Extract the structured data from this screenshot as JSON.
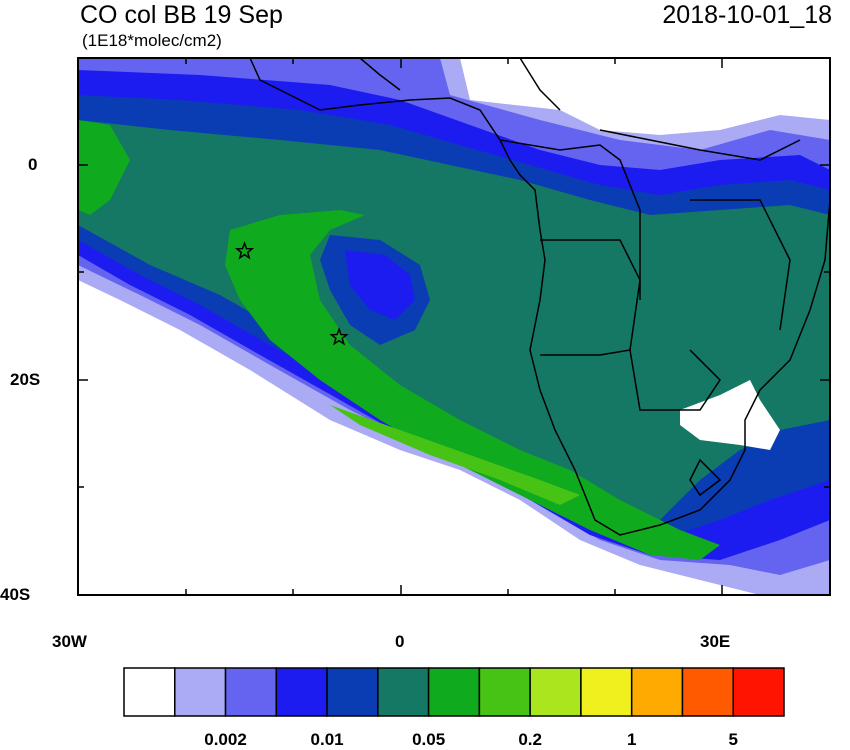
{
  "title": "CO col BB 19 Sep",
  "units": "(1E18*molec/cm2)",
  "datetime": "2018-10-01_18",
  "map": {
    "lon_range": [
      -30,
      40
    ],
    "lat_range": [
      -40,
      10
    ],
    "x_ticks": [
      {
        "value": -30,
        "label": "30W"
      },
      {
        "value": 0,
        "label": "0"
      },
      {
        "value": 30,
        "label": "30E"
      }
    ],
    "y_ticks": [
      {
        "value": 0,
        "label": "0"
      },
      {
        "value": -20,
        "label": "20S"
      },
      {
        "value": -40,
        "label": "40S"
      }
    ],
    "markers": [
      {
        "lon": -14.5,
        "lat": -8.0,
        "symbol": "star"
      },
      {
        "lon": -5.7,
        "lat": -16.0,
        "symbol": "star"
      }
    ]
  },
  "colorbar": {
    "colors": [
      "#ffffff",
      "#aaaaf5",
      "#6464f0",
      "#1c1cf0",
      "#0a3cb4",
      "#147864",
      "#0faa1e",
      "#46c314",
      "#aae61e",
      "#f0f01e",
      "#ffaa00",
      "#ff5a00",
      "#ff1400"
    ],
    "labels": [
      "0.002",
      "0.01",
      "0.05",
      "0.2",
      "1",
      "5"
    ]
  }
}
